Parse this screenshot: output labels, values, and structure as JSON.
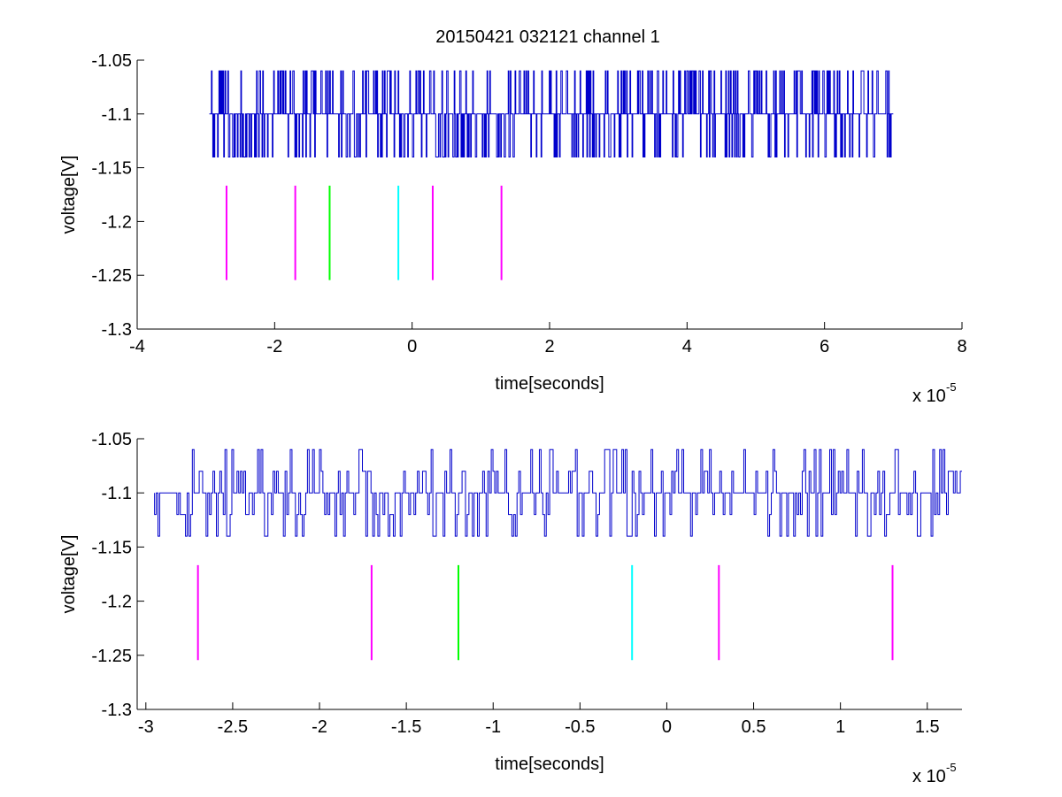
{
  "title": "20150421 032121 channel 1",
  "chart_data": [
    {
      "type": "line",
      "xlabel": "time[seconds]",
      "ylabel": "voltage[V]",
      "x_exponent_label": "x 10",
      "x_exponent": "-5",
      "xlim": [
        -4,
        8
      ],
      "ylim": [
        -1.3,
        -1.05
      ],
      "xticks": [
        "-4",
        "-2",
        "0",
        "2",
        "4",
        "6",
        "8"
      ],
      "xtick_values": [
        -4,
        -2,
        0,
        2,
        4,
        6,
        8
      ],
      "yticks": [
        "-1.05",
        "-1.1",
        "-1.15",
        "-1.2",
        "-1.25",
        "-1.3"
      ],
      "ytick_values": [
        -1.05,
        -1.1,
        -1.15,
        -1.2,
        -1.25,
        -1.3
      ],
      "grid": false,
      "signal": {
        "color": "#0000cc",
        "x_range": [
          -2.95,
          7.0
        ],
        "levels": [
          -1.06,
          -1.1,
          -1.14
        ],
        "baseline": -1.1,
        "samples": 1000
      },
      "markers": [
        {
          "x": -2.7,
          "y_top": -1.1667,
          "y_bottom": -1.2545,
          "color": "#ff00ff"
        },
        {
          "x": -1.7,
          "y_top": -1.1667,
          "y_bottom": -1.2545,
          "color": "#ff00ff"
        },
        {
          "x": -1.2,
          "y_top": -1.1667,
          "y_bottom": -1.2545,
          "color": "#00ff00"
        },
        {
          "x": -0.2,
          "y_top": -1.1667,
          "y_bottom": -1.2545,
          "color": "#00ffff"
        },
        {
          "x": 0.3,
          "y_top": -1.1667,
          "y_bottom": -1.2545,
          "color": "#ff00ff"
        },
        {
          "x": 1.3,
          "y_top": -1.1667,
          "y_bottom": -1.2545,
          "color": "#ff00ff"
        }
      ]
    },
    {
      "type": "line",
      "xlabel": "time[seconds]",
      "ylabel": "voltage[V]",
      "x_exponent_label": "x 10",
      "x_exponent": "-5",
      "xlim": [
        -3.05,
        1.7
      ],
      "ylim": [
        -1.3,
        -1.05
      ],
      "xticks": [
        "-3",
        "-2.5",
        "-2",
        "-1.5",
        "-1",
        "-0.5",
        "0",
        "0.5",
        "1",
        "1.5"
      ],
      "xtick_values": [
        -3,
        -2.5,
        -2,
        -1.5,
        -1,
        -0.5,
        0,
        0.5,
        1,
        1.5
      ],
      "yticks": [
        "-1.05",
        "-1.1",
        "-1.15",
        "-1.2",
        "-1.25",
        "-1.3"
      ],
      "ytick_values": [
        -1.05,
        -1.1,
        -1.15,
        -1.2,
        -1.25,
        -1.3
      ],
      "grid": false,
      "signal": {
        "color": "#0000cc",
        "x_range": [
          -2.95,
          1.7
        ],
        "levels": [
          -1.06,
          -1.08,
          -1.1,
          -1.12,
          -1.14
        ],
        "baseline": -1.1,
        "samples": 470
      },
      "markers": [
        {
          "x": -2.7,
          "y_top": -1.1667,
          "y_bottom": -1.2545,
          "color": "#ff00ff"
        },
        {
          "x": -1.7,
          "y_top": -1.1667,
          "y_bottom": -1.2545,
          "color": "#ff00ff"
        },
        {
          "x": -1.2,
          "y_top": -1.1667,
          "y_bottom": -1.2545,
          "color": "#00ff00"
        },
        {
          "x": -0.2,
          "y_top": -1.1667,
          "y_bottom": -1.2545,
          "color": "#00ffff"
        },
        {
          "x": 0.3,
          "y_top": -1.1667,
          "y_bottom": -1.2545,
          "color": "#ff00ff"
        },
        {
          "x": 1.3,
          "y_top": -1.1667,
          "y_bottom": -1.2545,
          "color": "#ff00ff"
        }
      ]
    }
  ]
}
